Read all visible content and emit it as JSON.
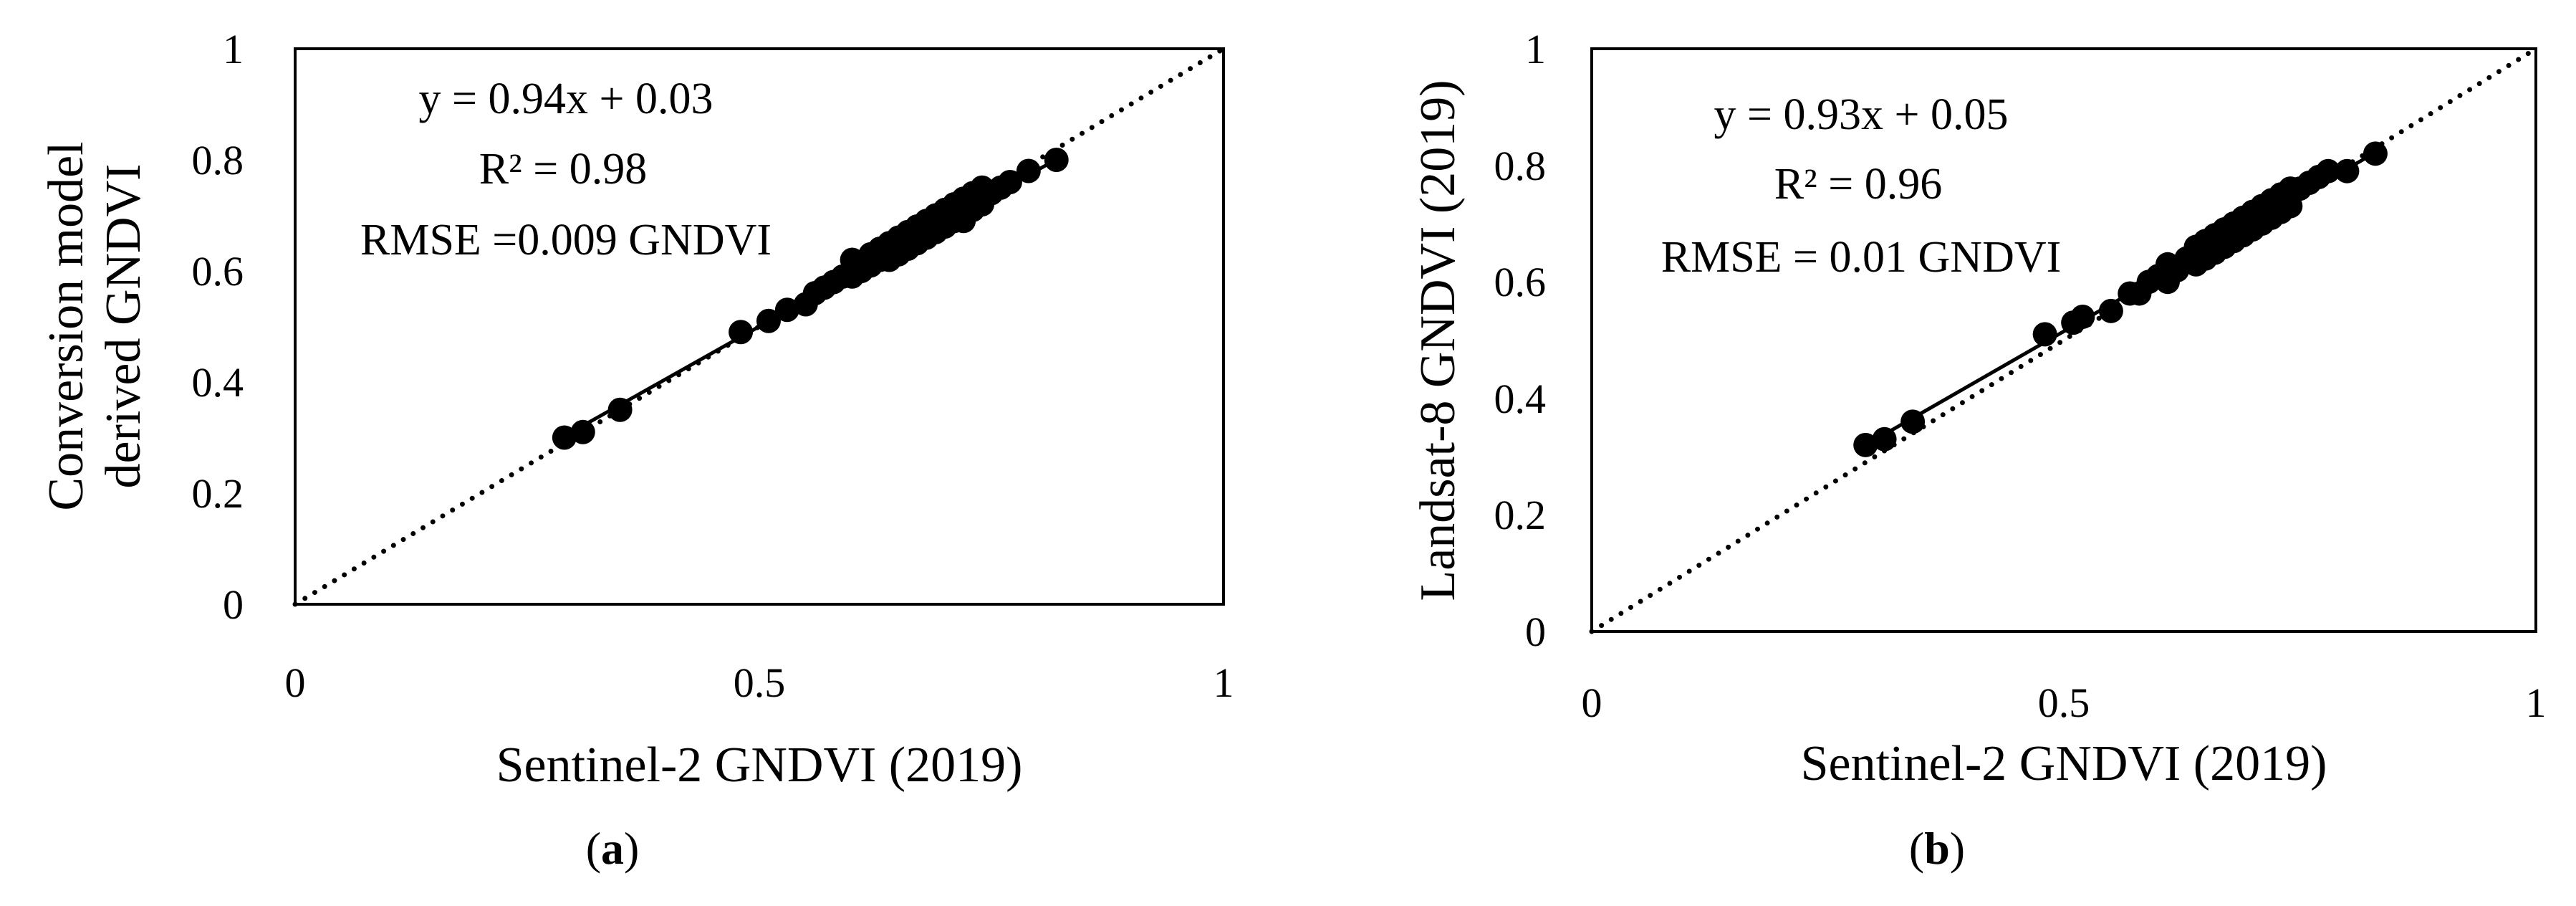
{
  "figure": {
    "panel_labels": [
      "a",
      "b"
    ]
  },
  "chart_data": [
    {
      "type": "scatter",
      "panel": "a",
      "xlabel": "Sentinel-2 GNDVI (2019)",
      "ylabel_lines": [
        "Conversion model",
        "derived GNDVI"
      ],
      "xlim": [
        0,
        1
      ],
      "ylim": [
        0,
        1
      ],
      "xticks": [
        "0",
        "0.5",
        "1"
      ],
      "yticks": [
        "0",
        "0.2",
        "0.4",
        "0.6",
        "0.8",
        "1"
      ],
      "annotations": [
        "y = 0.94x + 0.03",
        "R² = 0.98",
        "RMSE =0.009 GNDVI"
      ],
      "fit": {
        "slope": 0.94,
        "intercept": 0.03,
        "x_range": [
          0.29,
          0.82
        ]
      },
      "one_to_one_line": true,
      "x": [
        0.29,
        0.31,
        0.35,
        0.48,
        0.51,
        0.53,
        0.55,
        0.56,
        0.57,
        0.58,
        0.59,
        0.6,
        0.6,
        0.61,
        0.62,
        0.62,
        0.63,
        0.63,
        0.64,
        0.64,
        0.65,
        0.65,
        0.66,
        0.66,
        0.67,
        0.67,
        0.68,
        0.68,
        0.69,
        0.69,
        0.7,
        0.7,
        0.71,
        0.71,
        0.72,
        0.72,
        0.73,
        0.73,
        0.74,
        0.74,
        0.75,
        0.76,
        0.77,
        0.79,
        0.82
      ],
      "y": [
        0.3,
        0.31,
        0.35,
        0.49,
        0.51,
        0.53,
        0.54,
        0.56,
        0.57,
        0.58,
        0.59,
        0.59,
        0.62,
        0.6,
        0.61,
        0.63,
        0.62,
        0.64,
        0.62,
        0.65,
        0.63,
        0.66,
        0.64,
        0.67,
        0.65,
        0.68,
        0.66,
        0.69,
        0.67,
        0.7,
        0.68,
        0.71,
        0.69,
        0.72,
        0.69,
        0.73,
        0.71,
        0.74,
        0.72,
        0.75,
        0.74,
        0.75,
        0.76,
        0.78,
        0.8
      ]
    },
    {
      "type": "scatter",
      "panel": "b",
      "xlabel": "Sentinel-2 GNDVI (2019)",
      "ylabel_lines": [
        "Landsat-8 GNDVI (2019)"
      ],
      "xlim": [
        0,
        1
      ],
      "ylim": [
        0,
        1
      ],
      "xticks": [
        "0",
        "0.5",
        "1"
      ],
      "yticks": [
        "0",
        "0.2",
        "0.4",
        "0.6",
        "0.8",
        "1"
      ],
      "annotations": [
        "y = 0.93x + 0.05",
        "R² = 0.96",
        "RMSE = 0.01 GNDVI"
      ],
      "fit": {
        "slope": 0.93,
        "intercept": 0.05,
        "x_range": [
          0.29,
          0.83
        ]
      },
      "one_to_one_line": true,
      "x": [
        0.29,
        0.31,
        0.34,
        0.48,
        0.51,
        0.52,
        0.55,
        0.57,
        0.58,
        0.59,
        0.6,
        0.61,
        0.61,
        0.62,
        0.63,
        0.64,
        0.64,
        0.65,
        0.65,
        0.66,
        0.66,
        0.67,
        0.67,
        0.68,
        0.68,
        0.69,
        0.69,
        0.7,
        0.7,
        0.71,
        0.71,
        0.72,
        0.72,
        0.73,
        0.73,
        0.74,
        0.74,
        0.75,
        0.76,
        0.77,
        0.78,
        0.8,
        0.83
      ],
      "y": [
        0.32,
        0.33,
        0.36,
        0.51,
        0.53,
        0.54,
        0.55,
        0.58,
        0.58,
        0.6,
        0.61,
        0.6,
        0.63,
        0.62,
        0.64,
        0.63,
        0.66,
        0.64,
        0.67,
        0.65,
        0.68,
        0.66,
        0.69,
        0.67,
        0.7,
        0.68,
        0.71,
        0.69,
        0.72,
        0.7,
        0.73,
        0.71,
        0.74,
        0.72,
        0.75,
        0.73,
        0.76,
        0.76,
        0.77,
        0.78,
        0.79,
        0.79,
        0.82
      ]
    }
  ]
}
